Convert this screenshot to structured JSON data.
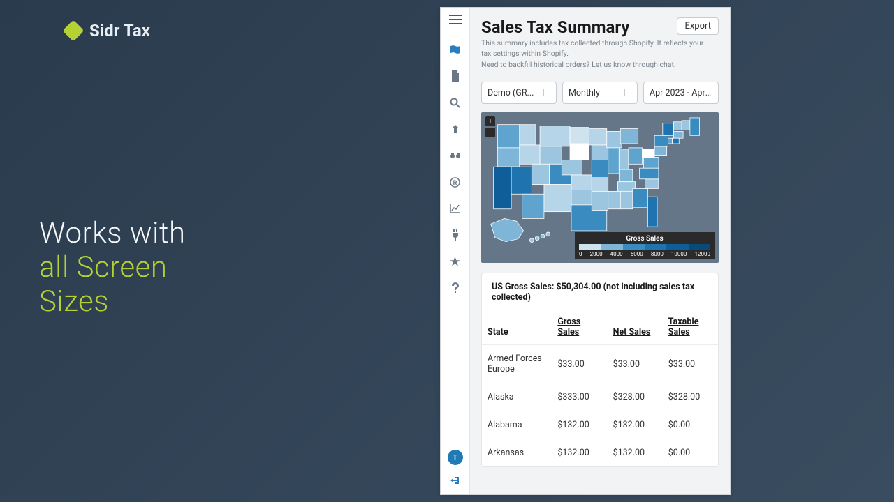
{
  "brand": {
    "name": "Sidr Tax"
  },
  "tagline": {
    "line1": "Works with",
    "line2": "all Screen",
    "line3": "Sizes"
  },
  "sidebar": {
    "icons": [
      "map",
      "file",
      "search",
      "arrow-up",
      "binoculars",
      "registered",
      "chart",
      "plug",
      "star",
      "question"
    ],
    "avatar_letter": "T"
  },
  "page": {
    "title": "Sales Tax Summary",
    "subtitle1": "This summary includes tax collected through Shopify. It reflects your tax settings within Shopify.",
    "subtitle2": "Need to backfill historical orders? Let us know through chat.",
    "export_label": "Export"
  },
  "filters": {
    "store": "Demo (GR...",
    "period": "Monthly",
    "range": "Apr 2023 - Apr 20"
  },
  "map": {
    "background": "#647687",
    "colors": [
      "#e6f0f7",
      "#cfe3ef",
      "#b6d5e8",
      "#9cc6e0",
      "#7fb6d8",
      "#5fa4cf",
      "#3a8cc0",
      "#1f74af",
      "#0f5e99"
    ],
    "white": "#ffffff",
    "legend": {
      "title": "Gross Sales",
      "colors": [
        "#cfe3ef",
        "#7fb6d8",
        "#3a8cc0",
        "#1f74af",
        "#0f5e99",
        "#0a4a7a"
      ],
      "labels": [
        "0",
        "2000",
        "4000",
        "6000",
        "8000",
        "10000",
        "12000"
      ]
    }
  },
  "summary": {
    "gross_line": "US Gross Sales: $50,304.00 (not including sales tax collected)"
  },
  "table": {
    "headers": [
      "State",
      "Gross Sales",
      "Net Sales",
      "Taxable Sales"
    ],
    "rows": [
      [
        "Armed Forces Europe",
        "$33.00",
        "$33.00",
        "$33.00"
      ],
      [
        "Alaska",
        "$333.00",
        "$328.00",
        "$328.00"
      ],
      [
        "Alabama",
        "$132.00",
        "$132.00",
        "$0.00"
      ],
      [
        "Arkansas",
        "$132.00",
        "$132.00",
        "$0.00"
      ]
    ]
  }
}
